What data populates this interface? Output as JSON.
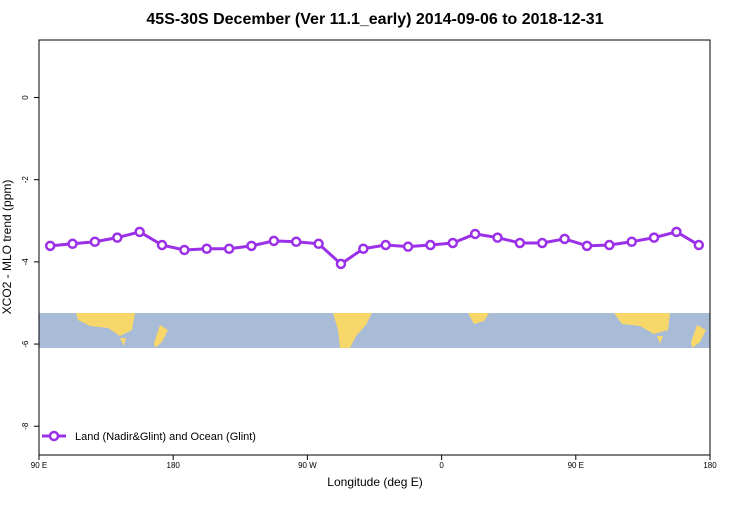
{
  "chart_data": {
    "type": "line",
    "title": "45S-30S December (Ver 11.1_early)   2014-09-06 to 2018-12-31",
    "xlabel": "Longitude (deg E)",
    "ylabel": "XCO2 - MLO trend (ppm)",
    "x": [
      97.5,
      112.5,
      127.5,
      142.5,
      157.5,
      172.5,
      187.5,
      202.5,
      217.5,
      232.5,
      247.5,
      262.5,
      277.5,
      292.5,
      307.5,
      322.5,
      337.5,
      352.5,
      367.5,
      382.5,
      397.5,
      412.5,
      427.5,
      442.5,
      457.5,
      472.5,
      487.5,
      502.5,
      517.5,
      532.5
    ],
    "series": [
      {
        "name": "Land (Nadir&Glint) and Ocean (Glint)",
        "color": "#9b30e8",
        "values": [
          -3.61,
          -3.56,
          -3.51,
          -3.41,
          -3.27,
          -3.59,
          -3.71,
          -3.68,
          -3.68,
          -3.61,
          -3.49,
          -3.51,
          -3.56,
          -4.05,
          -3.68,
          -3.59,
          -3.63,
          -3.59,
          -3.54,
          -3.32,
          -3.41,
          -3.54,
          -3.54,
          -3.44,
          -3.61,
          -3.59,
          -3.51,
          -3.41,
          -3.27,
          -3.59
        ]
      }
    ],
    "xlim": [
      90,
      540
    ],
    "xticks": [
      {
        "value": 90,
        "label": "90 E"
      },
      180,
      {
        "value": 270,
        "label": "90 W"
      },
      {
        "value": 360,
        "label": "0"
      },
      {
        "value": 450,
        "label": "90 E"
      },
      {
        "value": 540,
        "label": "180"
      }
    ],
    "ylim": [
      -8.7,
      1.4
    ],
    "yticks": [
      0,
      -2,
      -4,
      -6,
      -8
    ],
    "legend": "bottom-left"
  }
}
